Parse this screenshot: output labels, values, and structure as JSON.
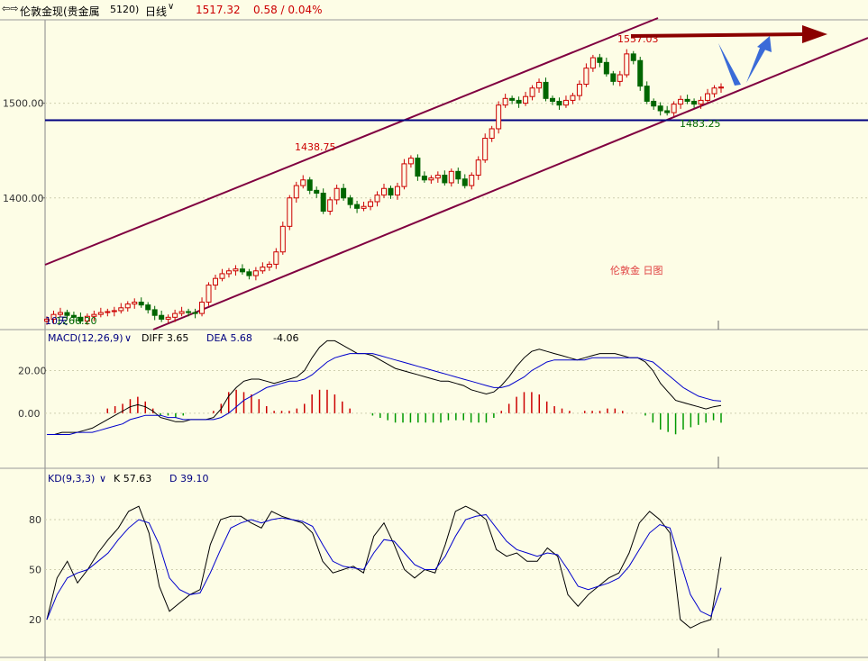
{
  "header": {
    "nav_icon": "back-forward-icon",
    "instrument": "伦敦金现(贵金属",
    "code": "5120)",
    "period": "日线",
    "price": "1517.32",
    "change": "0.58 / 0.04%"
  },
  "colors": {
    "background": "#fdfde6",
    "up": "#cc0000",
    "down": "#006600",
    "channel": "#800040",
    "support": "#000080",
    "arrow_red": "#8b0000",
    "arrow_blue": "#3a6bd8",
    "ma_line": "#000000",
    "signal_line": "#0000cc"
  },
  "chart_data": [
    {
      "type": "candlestick",
      "ylim": [
        1261,
        1588
      ],
      "yticks": [
        1400.0,
        1500.0
      ],
      "annotations": {
        "high_1": "1438.75",
        "high_2": "1557.03",
        "low_1": "1483.25",
        "low_start": "1266.20",
        "overlay_left": "10天",
        "title_text": "伦敦金  日图"
      },
      "horizontal_line": 1482,
      "closes": [
        1272,
        1277,
        1279,
        1276,
        1274,
        1270,
        1275,
        1277,
        1279,
        1280,
        1281,
        1284,
        1288,
        1290,
        1287,
        1282,
        1276,
        1272,
        1274,
        1278,
        1280,
        1279,
        1278,
        1290,
        1308,
        1315,
        1320,
        1323,
        1325,
        1322,
        1318,
        1323,
        1327,
        1330,
        1343,
        1370,
        1400,
        1413,
        1419,
        1408,
        1405,
        1386,
        1398,
        1410,
        1400,
        1393,
        1389,
        1391,
        1396,
        1403,
        1410,
        1403,
        1412,
        1436,
        1442,
        1423,
        1419,
        1421,
        1424,
        1416,
        1428,
        1420,
        1413,
        1424,
        1440,
        1463,
        1473,
        1498,
        1505,
        1503,
        1500,
        1507,
        1516,
        1522,
        1505,
        1502,
        1498,
        1503,
        1508,
        1520,
        1537,
        1548,
        1543,
        1531,
        1523,
        1530,
        1552,
        1545,
        1518,
        1502,
        1497,
        1492,
        1490,
        1499,
        1504,
        1502,
        1499,
        1503,
        1510,
        1516,
        1517
      ],
      "opens": [
        1270,
        1272,
        1277,
        1279,
        1276,
        1274,
        1270,
        1275,
        1277,
        1279,
        1280,
        1281,
        1284,
        1288,
        1290,
        1287,
        1282,
        1276,
        1272,
        1274,
        1278,
        1280,
        1279,
        1278,
        1290,
        1308,
        1315,
        1320,
        1323,
        1325,
        1322,
        1318,
        1323,
        1327,
        1330,
        1343,
        1370,
        1400,
        1413,
        1419,
        1408,
        1405,
        1386,
        1398,
        1410,
        1400,
        1393,
        1389,
        1391,
        1396,
        1403,
        1410,
        1403,
        1412,
        1436,
        1442,
        1423,
        1419,
        1421,
        1424,
        1416,
        1428,
        1420,
        1413,
        1424,
        1440,
        1463,
        1473,
        1498,
        1505,
        1503,
        1500,
        1507,
        1516,
        1522,
        1505,
        1502,
        1498,
        1503,
        1508,
        1520,
        1537,
        1548,
        1543,
        1531,
        1523,
        1530,
        1552,
        1545,
        1518,
        1502,
        1497,
        1492,
        1490,
        1499,
        1504,
        1502,
        1499,
        1503,
        1510,
        1516
      ]
    },
    {
      "type": "line",
      "title": "MACD(12,26,9)",
      "labels": {
        "diff_label": "DIFF 3.65",
        "dea_label": "DEA 5.68",
        "macd_label": "-4.06"
      },
      "ylim": [
        -25,
        35
      ],
      "yticks": [
        20.0,
        0.0
      ],
      "diff": [
        -10,
        -10,
        -9,
        -9,
        -9,
        -8,
        -7,
        -5,
        -3,
        -1,
        1,
        3,
        4,
        3,
        1,
        -2,
        -3,
        -4,
        -4,
        -3,
        -3,
        -3,
        -2,
        2,
        8,
        12,
        15,
        16,
        16,
        15,
        14,
        15,
        16,
        17,
        20,
        26,
        31,
        34,
        34,
        32,
        30,
        28,
        28,
        27,
        25,
        23,
        21,
        20,
        19,
        18,
        17,
        16,
        15,
        15,
        14,
        13,
        11,
        10,
        9,
        10,
        13,
        17,
        22,
        26,
        29,
        30,
        29,
        28,
        27,
        26,
        25,
        26,
        27,
        28,
        28,
        28,
        27,
        26,
        26,
        24,
        20,
        14,
        10,
        6,
        5,
        4,
        3,
        2,
        3,
        3.65
      ],
      "dea": [
        -10,
        -10,
        -10,
        -10,
        -9,
        -9,
        -9,
        -8,
        -7,
        -6,
        -5,
        -3,
        -2,
        -1,
        -1,
        -1,
        -2,
        -2,
        -3,
        -3,
        -3,
        -3,
        -3,
        -2,
        0,
        3,
        6,
        8,
        10,
        12,
        13,
        14,
        15,
        15,
        16,
        18,
        21,
        24,
        26,
        27,
        28,
        28,
        28,
        28,
        27,
        26,
        25,
        24,
        23,
        22,
        21,
        20,
        19,
        18,
        17,
        16,
        15,
        14,
        13,
        12,
        12,
        13,
        15,
        17,
        20,
        22,
        24,
        25,
        25,
        25,
        25,
        25,
        26,
        26,
        26,
        26,
        26,
        26,
        26,
        25,
        24,
        21,
        18,
        15,
        12,
        10,
        8,
        7,
        6,
        5.68
      ],
      "hist": [
        0,
        0,
        0,
        0,
        0,
        0,
        0,
        0,
        2,
        3,
        4,
        6,
        7,
        5,
        2,
        -1,
        -1,
        -2,
        -1,
        0,
        0,
        0,
        1,
        4,
        9,
        10,
        9,
        8,
        6,
        3,
        1,
        1,
        1,
        2,
        4,
        8,
        10,
        10,
        8,
        5,
        2,
        0,
        0,
        -1,
        -2,
        -3,
        -4,
        -4,
        -4,
        -4,
        -4,
        -4,
        -4,
        -3,
        -3,
        -3,
        -4,
        -4,
        -4,
        -2,
        1,
        4,
        7,
        9,
        9,
        8,
        5,
        3,
        2,
        1,
        0,
        1,
        1,
        1,
        2,
        2,
        1,
        0,
        0,
        -1,
        -4,
        -7,
        -8,
        -9,
        -7,
        -6,
        -5,
        -4,
        -3,
        -4.06
      ]
    },
    {
      "type": "line",
      "title": "KD(9,3,3)",
      "labels": {
        "k_label": "K 57.63",
        "d_label": "D 39.10"
      },
      "ylim": [
        0,
        100
      ],
      "yticks": [
        80,
        50,
        20
      ],
      "k": [
        20,
        45,
        55,
        42,
        50,
        60,
        68,
        75,
        85,
        88,
        72,
        40,
        25,
        30,
        35,
        38,
        65,
        80,
        82,
        82,
        78,
        75,
        85,
        82,
        80,
        78,
        72,
        55,
        48,
        50,
        52,
        48,
        70,
        78,
        65,
        50,
        45,
        50,
        48,
        65,
        85,
        88,
        85,
        80,
        62,
        58,
        60,
        55,
        55,
        63,
        58,
        35,
        28,
        35,
        40,
        45,
        48,
        60,
        78,
        85,
        80,
        72,
        20,
        15,
        18,
        20,
        57.63
      ],
      "d": [
        20,
        35,
        45,
        48,
        50,
        55,
        60,
        68,
        75,
        80,
        78,
        65,
        45,
        38,
        35,
        36,
        48,
        62,
        75,
        78,
        80,
        78,
        80,
        81,
        80,
        79,
        76,
        65,
        55,
        52,
        51,
        50,
        60,
        68,
        67,
        60,
        53,
        50,
        50,
        58,
        70,
        80,
        82,
        83,
        75,
        67,
        62,
        60,
        58,
        60,
        59,
        50,
        40,
        38,
        40,
        42,
        45,
        52,
        62,
        72,
        77,
        75,
        55,
        35,
        25,
        22,
        39.1
      ]
    }
  ]
}
